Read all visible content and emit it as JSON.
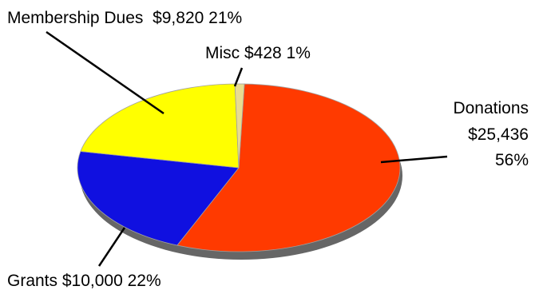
{
  "chart_data": {
    "type": "pie",
    "title": "",
    "slices": [
      {
        "name": "Donations",
        "amount": 25436,
        "amount_label": "$25,436",
        "percent": 56,
        "percent_label": "56%",
        "color": "#ff3a00"
      },
      {
        "name": "Grants",
        "amount": 10000,
        "amount_label": "$10,000",
        "percent": 22,
        "percent_label": "22%",
        "color": "#1010e0"
      },
      {
        "name": "Membership Dues",
        "amount": 9820,
        "amount_label": "$9,820",
        "percent": 21,
        "percent_label": "21%",
        "color": "#ffff00"
      },
      {
        "name": "Misc",
        "amount": 428,
        "amount_label": "$428",
        "percent": 1,
        "percent_label": "1%",
        "color": "#e8dc90"
      }
    ],
    "labels": {
      "membership": "Membership Dues  $9,820 21%",
      "misc": "Misc $428 1%",
      "donations_name": "Donations",
      "donations_amount": "$25,436",
      "donations_percent": "56%",
      "grants": "Grants $10,000 22%"
    },
    "shadow_color": "#666666",
    "outline_color": "#a0a0a0",
    "leader_color": "#000000",
    "legend": "none"
  }
}
